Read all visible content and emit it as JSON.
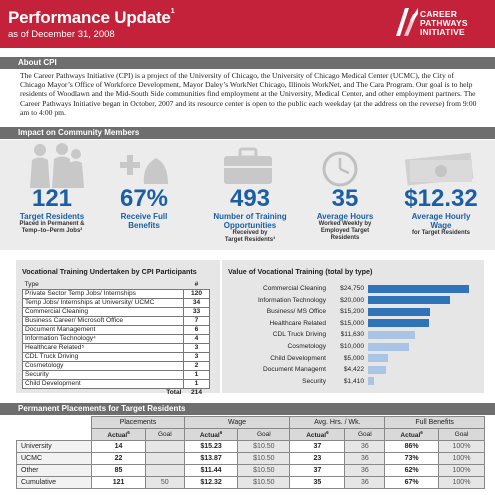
{
  "header": {
    "title": "Performance Update",
    "title_sup": "1",
    "subtitle": "as of December 31, 2008",
    "logo_lines": [
      "CAREER",
      "PATHWAYS",
      "INITIATIVE"
    ]
  },
  "sections": {
    "about": "About CPI",
    "impact": "Impact on Community Members",
    "placements": "Permanent Placements for Target Residents"
  },
  "about_text": "The Career Pathways Initiative (CPI) is a project of the University of Chicago, the University of Chicago Medical Center (UCMC), the City of Chicago Mayor’s Office of Workforce Development, Mayor Daley’s WorkNet Chicago, Illinois WorkNet, and The Cara Program.  Our goal is to help residents of Woodlawn and the Mid-South Side communities find employment at the University, Medical Center, and other employment partners.  The Career Pathways Initiative began in October, 2007 and its resource center is open to the public each weekday (at the address on the reverse) from 9:00 am to 4:00 pm.",
  "stats": [
    {
      "num": "121",
      "label": "Target Residents",
      "sub": "Placed in Permanent &\nTemp–to–Perm Jobs²"
    },
    {
      "num": "67%",
      "label": "Receive Full\nBenefits",
      "sub": ""
    },
    {
      "num": "493",
      "label": "Number of Training\nOpportunities",
      "sub": "Received by\nTarget Residents³"
    },
    {
      "num": "35",
      "label": "Average Hours",
      "sub": "Worked Weekly by\nEmployed Target\nResidents"
    },
    {
      "num": "$12.32",
      "label": "Average Hourly\nWage",
      "sub": "for Target Residents"
    }
  ],
  "vocational": {
    "title": "Vocational Training Undertaken by CPI Participants",
    "col_type": "Type",
    "col_num": "#",
    "rows": [
      {
        "type": "Private Sector Temp Jobs/ Internships",
        "n": "120"
      },
      {
        "type": "Temp Jobs/ Internships at University/ UCMC",
        "n": "34"
      },
      {
        "type": "Commercial Cleaning",
        "n": "33"
      },
      {
        "type": "Business Career/ Microsoft Office",
        "n": "7"
      },
      {
        "type": "Document Management",
        "n": "6"
      },
      {
        "type": "Information Technology⁴",
        "n": "4"
      },
      {
        "type": "Healthcare Related⁵",
        "n": "3"
      },
      {
        "type": "CDL Truck Driving",
        "n": "3"
      },
      {
        "type": "Cosmetology",
        "n": "2"
      },
      {
        "type": "Security",
        "n": "1"
      },
      {
        "type": "Child Development",
        "n": "1"
      }
    ],
    "total_label": "Total",
    "total": "214"
  },
  "value_chart": {
    "title": "Value of Vocational Training (total by type)",
    "bar_color": "#2f74b8",
    "light_color": "#a9c4e4"
  },
  "chart_data": {
    "type": "bar",
    "title": "Value of Vocational Training (total by type)",
    "categories": [
      "Commercial Cleaning",
      "Information Technology",
      "Business/ MS Office",
      "Healthcare Related",
      "CDL Truck Driving",
      "Cosmetology",
      "Child Development",
      "Document Managemt",
      "Security"
    ],
    "values": [
      24750,
      20000,
      15200,
      15000,
      11630,
      10000,
      5000,
      4422,
      1410
    ],
    "value_labels": [
      "$24,750",
      "$20,000",
      "$15,200",
      "$15,000",
      "$11,630",
      "$10,000",
      "$5,000",
      "$4,422",
      "$1,410"
    ],
    "orientation": "horizontal",
    "xlim": [
      0,
      25000
    ]
  },
  "placements": {
    "groups": [
      "Placements",
      "Wage",
      "Avg. Hrs. / Wk.",
      "Full Benefits"
    ],
    "sub_actual": "Actual",
    "sub_goal": "Goal",
    "sup": "6",
    "rows": [
      {
        "label": "University",
        "p_a": "14",
        "p_g": "",
        "w_a": "$15.23",
        "w_g": "$10.50",
        "h_a": "37",
        "h_g": "36",
        "b_a": "86%",
        "b_g": "100%"
      },
      {
        "label": "UCMC",
        "p_a": "22",
        "p_g": "",
        "w_a": "$13.87",
        "w_g": "$10.50",
        "h_a": "23",
        "h_g": "36",
        "b_a": "73%",
        "b_g": "100%"
      },
      {
        "label": "Other",
        "p_a": "85",
        "p_g": "",
        "w_a": "$11.44",
        "w_g": "$10.50",
        "h_a": "37",
        "h_g": "36",
        "b_a": "62%",
        "b_g": "100%"
      },
      {
        "label": "Cumulative",
        "p_a": "121",
        "p_g": "50",
        "w_a": "$12.32",
        "w_g": "$10.50",
        "h_a": "35",
        "h_g": "36",
        "b_a": "67%",
        "b_g": "100%"
      }
    ]
  }
}
